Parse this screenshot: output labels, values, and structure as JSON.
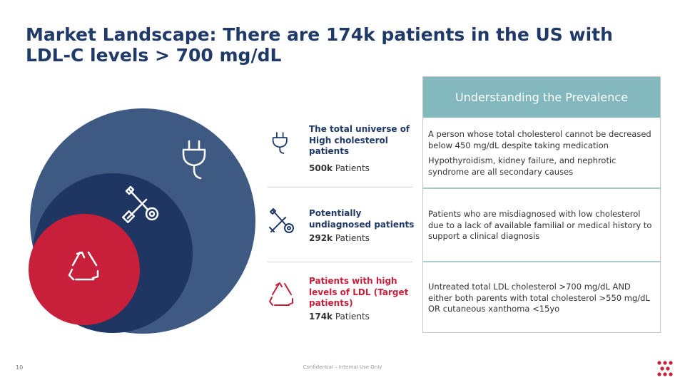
{
  "header": {
    "title": "Market Landscape: There are 174k patients in the US with LDL-C levels > 700 mg/dL"
  },
  "diagram": {
    "colors": {
      "outer": "#3e5a82",
      "middle": "#1f3562",
      "inner": "#c8203a"
    },
    "icons": {
      "outer": "plug-icon",
      "middle": "tools-icon",
      "inner": "recycle-icon"
    }
  },
  "legend": [
    {
      "label": "The total universe of High cholesterol patients",
      "count_value": "500k",
      "count_unit": "Patients",
      "icon": "plug-icon"
    },
    {
      "label": "Potentially undiagnosed patients",
      "count_value": "292k",
      "count_unit": "Patients",
      "icon": "tools-icon"
    },
    {
      "label": "Patients with high levels of LDL (Target patients)",
      "count_value": "174k",
      "count_unit": "Patients",
      "icon": "recycle-icon"
    }
  ],
  "table": {
    "header": "Understanding the Prevalence",
    "rows": [
      {
        "p1": "A person whose total cholesterol cannot be decreased below 450 mg/dL despite taking medication",
        "p2": "Hypothyroidism, kidney failure, and nephrotic syndrome are all secondary causes"
      },
      {
        "p1": "Patients who are misdiagnosed with low cholesterol due to a lack of available familial or medical history to support a clinical diagnosis"
      },
      {
        "p1": "Untreated total LDL cholesterol >700 mg/dL AND either both parents with total cholesterol >550 mg/dL OR cutaneous xanthoma <15yo"
      }
    ]
  },
  "footer": {
    "page_number": "10",
    "confidential": "Confidential – Internal Use Only"
  }
}
